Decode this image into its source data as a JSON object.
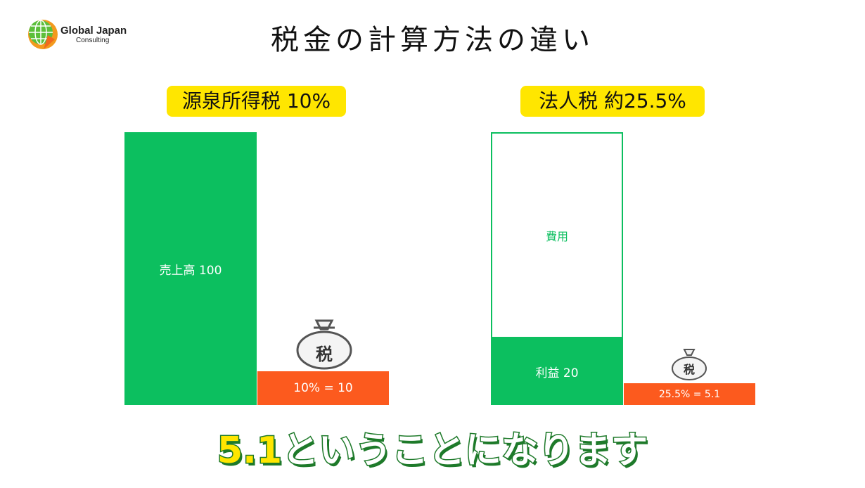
{
  "logo": {
    "line1": "Global Japan",
    "line2": "Consulting"
  },
  "title": "税金の計算方法の違い",
  "left": {
    "heading": "源泉所得税 10%",
    "revenue_label": "売上高 100",
    "tax_label": "10% = 10",
    "bag_label": "税"
  },
  "right": {
    "heading": "法人税 約25.5%",
    "expense_label": "費用",
    "profit_label": "利益 20",
    "tax_label": "25.5% = 5.1",
    "bag_label": "税"
  },
  "caption": {
    "number": "5.1",
    "text": "ということになります"
  },
  "colors": {
    "green": "#0cbf5f",
    "orange": "#fc5a1e",
    "yellow": "#ffe600",
    "caption_outline": "#1e7a2a"
  }
}
